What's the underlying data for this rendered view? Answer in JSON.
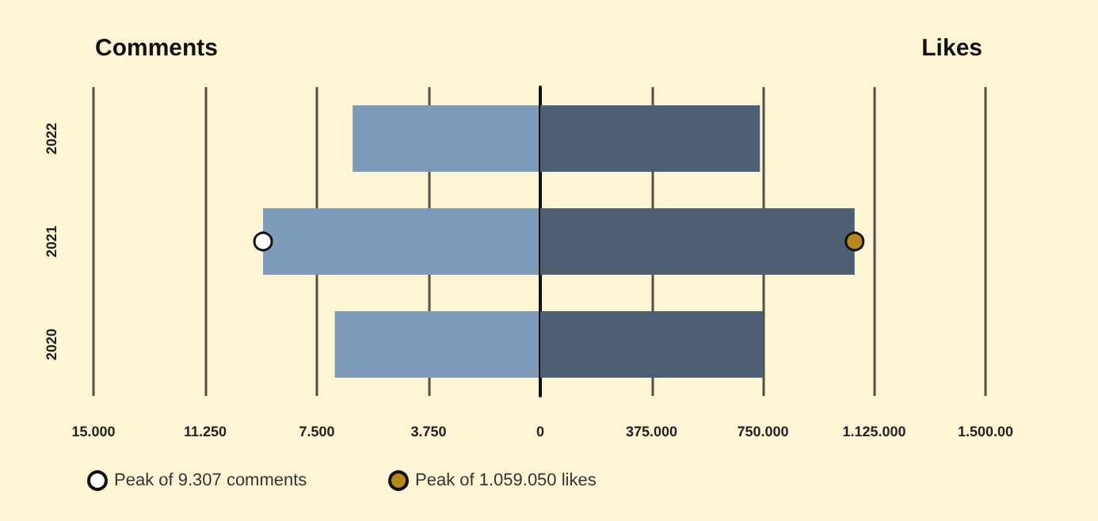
{
  "chart_data": [
    {
      "type": "bar",
      "orientation": "horizontal",
      "title": "Comments",
      "categories": [
        "2022",
        "2021",
        "2020"
      ],
      "series": [
        {
          "color": "#7f9bba",
          "values": [
            6300,
            9307,
            6900
          ]
        },
        {
          "type": "scatter",
          "name": "Peak of 9.307 comments",
          "color": "#ffffff",
          "values": [
            null,
            9307,
            null
          ]
        }
      ],
      "xlim": [
        15000,
        0
      ],
      "xticks": [
        {
          "value": 15000,
          "label": "15.000"
        },
        {
          "value": 11250,
          "label": "11.250"
        },
        {
          "value": 7500,
          "label": "7.500"
        },
        {
          "value": 3750,
          "label": "3.750"
        }
      ],
      "grid": "x",
      "legend": "bottom left",
      "marker": "circle"
    },
    {
      "type": "bar",
      "orientation": "horizontal",
      "title": "Likes",
      "categories": [
        "2022",
        "2021",
        "2020"
      ],
      "series": [
        {
          "color": "#4f5f73",
          "values": [
            740000,
            1059050,
            750000
          ]
        },
        {
          "type": "scatter",
          "name": "Peak of 1.059.050 likes",
          "color": "#b8861b",
          "values": [
            null,
            1059050,
            null
          ]
        }
      ],
      "xlim": [
        0,
        1500000
      ],
      "xticks": [
        0,
        {
          "value": 375000,
          "label": "375.000"
        },
        {
          "value": 750000,
          "label": "750.000"
        },
        {
          "value": 1125000,
          "label": "1.125.000"
        },
        {
          "value": 1500000,
          "label": "1.500.00"
        }
      ],
      "grid": "x",
      "legend": "bottom left",
      "marker": "circle",
      "tick_labels": "x"
    }
  ]
}
